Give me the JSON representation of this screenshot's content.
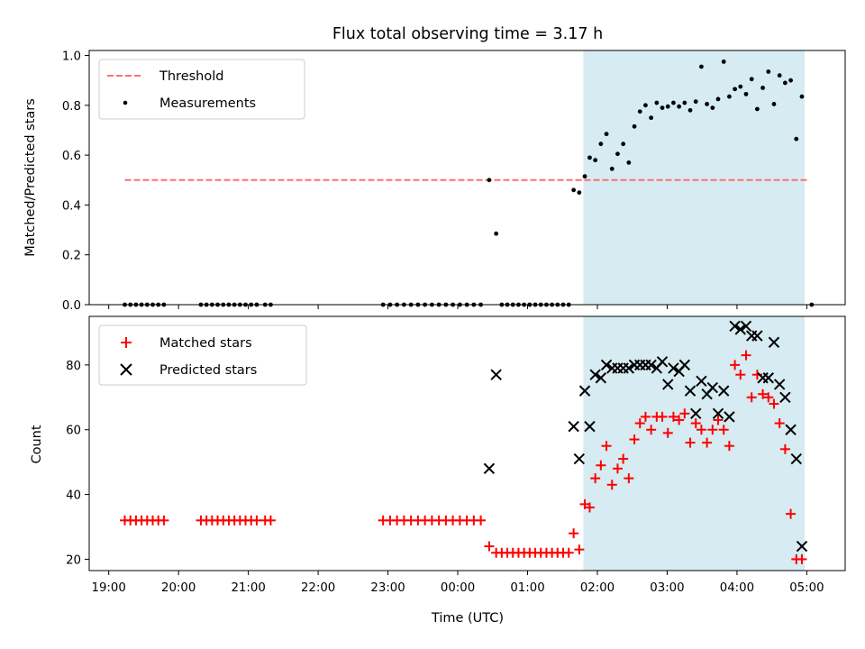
{
  "chart_data": {
    "type": "scatter",
    "title": "Flux total observing time = 3.17 h",
    "xlabel": "Time (UTC)",
    "x_tick_labels": [
      "19:00",
      "20:00",
      "21:00",
      "22:00",
      "23:00",
      "00:00",
      "01:00",
      "02:00",
      "03:00",
      "04:00",
      "05:00"
    ],
    "x_tick_hours": [
      0,
      1,
      2,
      3,
      4,
      5,
      6,
      7,
      8,
      9,
      10
    ],
    "xlim_hours": [
      -0.28,
      10.55
    ],
    "shaded_span_hours": [
      6.8,
      9.97
    ],
    "shade_color": "#add8e6",
    "top_panel": {
      "ylabel": "Matched/Predicted stars",
      "ylim": [
        0,
        1.02
      ],
      "yticks": [
        0,
        0.2,
        0.4,
        0.6,
        0.8,
        1.0
      ],
      "ytick_labels": [
        "0.0",
        "0.2",
        "0.4",
        "0.6",
        "0.8",
        "1.0"
      ],
      "threshold": {
        "label": "Threshold",
        "value": 0.5,
        "x_range_hours": [
          0.23,
          10.0
        ],
        "color": "#ff6f6f"
      },
      "measurements": {
        "label": "Measurements",
        "color": "#000000",
        "points": [
          [
            0.23,
            0
          ],
          [
            0.31,
            0
          ],
          [
            0.39,
            0
          ],
          [
            0.47,
            0
          ],
          [
            0.55,
            0
          ],
          [
            0.63,
            0
          ],
          [
            0.71,
            0
          ],
          [
            0.79,
            0
          ],
          [
            1.32,
            0
          ],
          [
            1.4,
            0
          ],
          [
            1.48,
            0
          ],
          [
            1.56,
            0
          ],
          [
            1.64,
            0
          ],
          [
            1.72,
            0
          ],
          [
            1.8,
            0
          ],
          [
            1.88,
            0
          ],
          [
            1.96,
            0
          ],
          [
            2.04,
            0
          ],
          [
            2.12,
            0
          ],
          [
            2.24,
            0
          ],
          [
            2.32,
            0
          ],
          [
            3.93,
            0
          ],
          [
            4.03,
            0
          ],
          [
            4.13,
            0
          ],
          [
            4.23,
            0
          ],
          [
            4.33,
            0
          ],
          [
            4.43,
            0
          ],
          [
            4.53,
            0
          ],
          [
            4.63,
            0
          ],
          [
            4.73,
            0
          ],
          [
            4.83,
            0
          ],
          [
            4.93,
            0
          ],
          [
            5.03,
            0
          ],
          [
            5.13,
            0
          ],
          [
            5.23,
            0
          ],
          [
            5.33,
            0
          ],
          [
            5.45,
            0.5
          ],
          [
            5.55,
            0.285
          ],
          [
            5.63,
            0
          ],
          [
            5.71,
            0
          ],
          [
            5.79,
            0
          ],
          [
            5.87,
            0
          ],
          [
            5.95,
            0
          ],
          [
            6.03,
            0
          ],
          [
            6.11,
            0
          ],
          [
            6.19,
            0
          ],
          [
            6.27,
            0
          ],
          [
            6.35,
            0
          ],
          [
            6.43,
            0
          ],
          [
            6.51,
            0
          ],
          [
            6.59,
            0
          ],
          [
            6.66,
            0.46
          ],
          [
            6.74,
            0.45
          ],
          [
            6.82,
            0.515
          ],
          [
            6.89,
            0.59
          ],
          [
            6.97,
            0.58
          ],
          [
            7.05,
            0.645
          ],
          [
            7.13,
            0.685
          ],
          [
            7.21,
            0.545
          ],
          [
            7.29,
            0.605
          ],
          [
            7.37,
            0.645
          ],
          [
            7.45,
            0.57
          ],
          [
            7.53,
            0.715
          ],
          [
            7.61,
            0.775
          ],
          [
            7.69,
            0.8
          ],
          [
            7.77,
            0.75
          ],
          [
            7.85,
            0.81
          ],
          [
            7.93,
            0.79
          ],
          [
            8.01,
            0.795
          ],
          [
            8.09,
            0.81
          ],
          [
            8.17,
            0.795
          ],
          [
            8.25,
            0.81
          ],
          [
            8.33,
            0.78
          ],
          [
            8.41,
            0.815
          ],
          [
            8.49,
            0.955
          ],
          [
            8.57,
            0.805
          ],
          [
            8.65,
            0.79
          ],
          [
            8.73,
            0.825
          ],
          [
            8.81,
            0.975
          ],
          [
            8.89,
            0.835
          ],
          [
            8.97,
            0.865
          ],
          [
            9.05,
            0.875
          ],
          [
            9.13,
            0.845
          ],
          [
            9.21,
            0.905
          ],
          [
            9.29,
            0.785
          ],
          [
            9.37,
            0.87
          ],
          [
            9.45,
            0.935
          ],
          [
            9.53,
            0.805
          ],
          [
            9.61,
            0.92
          ],
          [
            9.69,
            0.89
          ],
          [
            9.77,
            0.9
          ],
          [
            9.85,
            0.665
          ],
          [
            9.93,
            0.835
          ],
          [
            10.07,
            0
          ]
        ]
      },
      "legend": {
        "entries": [
          "Threshold",
          "Measurements"
        ],
        "position": "upper left"
      }
    },
    "bottom_panel": {
      "ylabel": "Count",
      "ylim": [
        16.5,
        95
      ],
      "yticks": [
        20,
        40,
        60,
        80
      ],
      "ytick_labels": [
        "20",
        "40",
        "60",
        "80"
      ],
      "series": [
        {
          "name": "Matched stars",
          "marker": "+",
          "color": "#ff0000",
          "points": [
            [
              0.23,
              32
            ],
            [
              0.31,
              32
            ],
            [
              0.39,
              32
            ],
            [
              0.47,
              32
            ],
            [
              0.55,
              32
            ],
            [
              0.63,
              32
            ],
            [
              0.71,
              32
            ],
            [
              0.79,
              32
            ],
            [
              1.32,
              32
            ],
            [
              1.4,
              32
            ],
            [
              1.48,
              32
            ],
            [
              1.56,
              32
            ],
            [
              1.64,
              32
            ],
            [
              1.72,
              32
            ],
            [
              1.8,
              32
            ],
            [
              1.88,
              32
            ],
            [
              1.96,
              32
            ],
            [
              2.04,
              32
            ],
            [
              2.12,
              32
            ],
            [
              2.24,
              32
            ],
            [
              2.32,
              32
            ],
            [
              3.93,
              32
            ],
            [
              4.03,
              32
            ],
            [
              4.13,
              32
            ],
            [
              4.23,
              32
            ],
            [
              4.33,
              32
            ],
            [
              4.43,
              32
            ],
            [
              4.53,
              32
            ],
            [
              4.63,
              32
            ],
            [
              4.73,
              32
            ],
            [
              4.83,
              32
            ],
            [
              4.93,
              32
            ],
            [
              5.03,
              32
            ],
            [
              5.13,
              32
            ],
            [
              5.23,
              32
            ],
            [
              5.33,
              32
            ],
            [
              5.45,
              24
            ],
            [
              5.55,
              22
            ],
            [
              5.63,
              22
            ],
            [
              5.71,
              22
            ],
            [
              5.79,
              22
            ],
            [
              5.87,
              22
            ],
            [
              5.95,
              22
            ],
            [
              6.03,
              22
            ],
            [
              6.11,
              22
            ],
            [
              6.19,
              22
            ],
            [
              6.27,
              22
            ],
            [
              6.35,
              22
            ],
            [
              6.43,
              22
            ],
            [
              6.51,
              22
            ],
            [
              6.59,
              22
            ],
            [
              6.66,
              28
            ],
            [
              6.74,
              23
            ],
            [
              6.82,
              37
            ],
            [
              6.89,
              36
            ],
            [
              6.97,
              45
            ],
            [
              7.05,
              49
            ],
            [
              7.13,
              55
            ],
            [
              7.21,
              43
            ],
            [
              7.29,
              48
            ],
            [
              7.37,
              51
            ],
            [
              7.45,
              45
            ],
            [
              7.53,
              57
            ],
            [
              7.61,
              62
            ],
            [
              7.69,
              64
            ],
            [
              7.77,
              60
            ],
            [
              7.85,
              64
            ],
            [
              7.93,
              64
            ],
            [
              8.01,
              59
            ],
            [
              8.09,
              64
            ],
            [
              8.17,
              63
            ],
            [
              8.25,
              65
            ],
            [
              8.33,
              56
            ],
            [
              8.41,
              62
            ],
            [
              8.49,
              60
            ],
            [
              8.57,
              56
            ],
            [
              8.65,
              60
            ],
            [
              8.73,
              63
            ],
            [
              8.81,
              60
            ],
            [
              8.89,
              55
            ],
            [
              8.97,
              80
            ],
            [
              9.05,
              77
            ],
            [
              9.13,
              83
            ],
            [
              9.21,
              70
            ],
            [
              9.29,
              77
            ],
            [
              9.37,
              71
            ],
            [
              9.45,
              70
            ],
            [
              9.53,
              68
            ],
            [
              9.61,
              62
            ],
            [
              9.69,
              54
            ],
            [
              9.77,
              34
            ],
            [
              9.85,
              20
            ],
            [
              9.93,
              20
            ]
          ]
        },
        {
          "name": "Predicted stars",
          "marker": "x",
          "color": "#000000",
          "points": [
            [
              5.45,
              48
            ],
            [
              5.55,
              77
            ],
            [
              6.66,
              61
            ],
            [
              6.74,
              51
            ],
            [
              6.82,
              72
            ],
            [
              6.89,
              61
            ],
            [
              6.97,
              77
            ],
            [
              7.05,
              76
            ],
            [
              7.13,
              80
            ],
            [
              7.21,
              79
            ],
            [
              7.29,
              79
            ],
            [
              7.37,
              79
            ],
            [
              7.45,
              79
            ],
            [
              7.53,
              80
            ],
            [
              7.61,
              80
            ],
            [
              7.69,
              80
            ],
            [
              7.77,
              80
            ],
            [
              7.85,
              79
            ],
            [
              7.93,
              81
            ],
            [
              8.01,
              74
            ],
            [
              8.09,
              79
            ],
            [
              8.17,
              78
            ],
            [
              8.25,
              80
            ],
            [
              8.33,
              72
            ],
            [
              8.41,
              65
            ],
            [
              8.49,
              75
            ],
            [
              8.57,
              71
            ],
            [
              8.65,
              73
            ],
            [
              8.73,
              65
            ],
            [
              8.81,
              72
            ],
            [
              8.89,
              64
            ],
            [
              8.97,
              92
            ],
            [
              9.05,
              91
            ],
            [
              9.13,
              92
            ],
            [
              9.21,
              89
            ],
            [
              9.29,
              89
            ],
            [
              9.37,
              76
            ],
            [
              9.45,
              76
            ],
            [
              9.53,
              87
            ],
            [
              9.61,
              74
            ],
            [
              9.69,
              70
            ],
            [
              9.77,
              60
            ],
            [
              9.85,
              51
            ],
            [
              9.93,
              24
            ]
          ]
        }
      ],
      "legend": {
        "entries": [
          "Matched stars",
          "Predicted stars"
        ],
        "position": "upper left"
      }
    }
  }
}
